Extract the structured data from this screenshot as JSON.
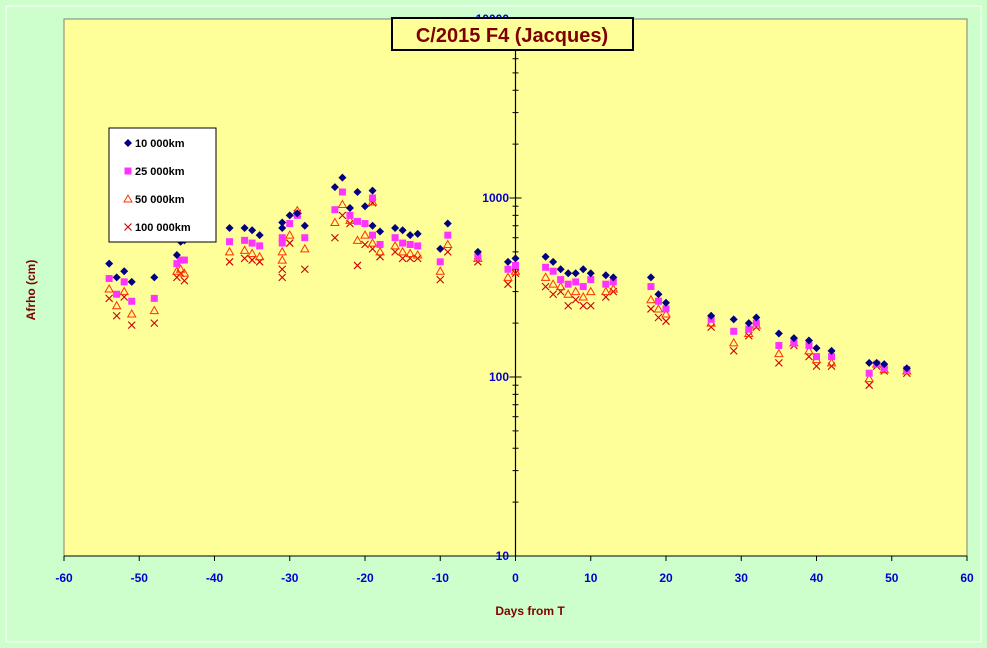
{
  "chart_data": {
    "type": "scatter",
    "title": "C/2015 F4 (Jacques)",
    "xlabel": "Days from  T",
    "ylabel": "Afrho (cm)",
    "xlim": [
      -60,
      60
    ],
    "ylim": [
      10,
      10000
    ],
    "yscale": "log",
    "grid": false,
    "legend_position": "left",
    "colors": {
      "plot_background": "#ffff99",
      "page_background": "#ccffcc",
      "axis_text": "#0000cc",
      "label_text": "#800000"
    },
    "x_ticks": [
      "-60",
      "-50",
      "-40",
      "-30",
      "-20",
      "-10",
      "0",
      "10",
      "20",
      "30",
      "40",
      "50",
      "60"
    ],
    "y_ticks": [
      "10",
      "100",
      "1000",
      "10000"
    ],
    "series": [
      {
        "name": "10 000km",
        "marker": "diamond",
        "color": "#000080",
        "points": [
          [
            -54,
            430
          ],
          [
            -53,
            360
          ],
          [
            -52,
            390
          ],
          [
            -51,
            340
          ],
          [
            -48,
            360
          ],
          [
            -45,
            480
          ],
          [
            -44.5,
            570
          ],
          [
            -44,
            580
          ],
          [
            -38,
            680
          ],
          [
            -36,
            680
          ],
          [
            -35,
            660
          ],
          [
            -34,
            620
          ],
          [
            -31,
            730
          ],
          [
            -31,
            680
          ],
          [
            -30,
            800
          ],
          [
            -29,
            820
          ],
          [
            -28,
            700
          ],
          [
            -24,
            1150
          ],
          [
            -23,
            1300
          ],
          [
            -22,
            880
          ],
          [
            -21,
            1080
          ],
          [
            -20,
            900
          ],
          [
            -19,
            1100
          ],
          [
            -19,
            700
          ],
          [
            -18,
            650
          ],
          [
            -16,
            680
          ],
          [
            -15,
            660
          ],
          [
            -14,
            620
          ],
          [
            -13,
            630
          ],
          [
            -10,
            520
          ],
          [
            -9,
            720
          ],
          [
            -5,
            500
          ],
          [
            -1,
            440
          ],
          [
            0,
            460
          ],
          [
            4,
            470
          ],
          [
            5,
            440
          ],
          [
            6,
            400
          ],
          [
            7,
            380
          ],
          [
            8,
            380
          ],
          [
            9,
            400
          ],
          [
            10,
            380
          ],
          [
            12,
            370
          ],
          [
            13,
            360
          ],
          [
            18,
            360
          ],
          [
            19,
            290
          ],
          [
            20,
            260
          ],
          [
            26,
            220
          ],
          [
            29,
            210
          ],
          [
            31,
            200
          ],
          [
            32,
            215
          ],
          [
            35,
            175
          ],
          [
            37,
            165
          ],
          [
            39,
            160
          ],
          [
            40,
            145
          ],
          [
            42,
            140
          ],
          [
            47,
            120
          ],
          [
            48,
            120
          ],
          [
            49,
            118
          ],
          [
            52,
            112
          ]
        ]
      },
      {
        "name": "25 000km",
        "marker": "square",
        "color": "#ff33ff",
        "points": [
          [
            -54,
            355
          ],
          [
            -53,
            290
          ],
          [
            -52,
            340
          ],
          [
            -51,
            265
          ],
          [
            -48,
            275
          ],
          [
            -45,
            430
          ],
          [
            -44.5,
            450
          ],
          [
            -44,
            450
          ],
          [
            -38,
            570
          ],
          [
            -36,
            580
          ],
          [
            -35,
            560
          ],
          [
            -34,
            540
          ],
          [
            -31,
            560
          ],
          [
            -31,
            600
          ],
          [
            -30,
            720
          ],
          [
            -29,
            800
          ],
          [
            -28,
            600
          ],
          [
            -24,
            860
          ],
          [
            -23,
            1080
          ],
          [
            -22,
            800
          ],
          [
            -21,
            740
          ],
          [
            -20,
            720
          ],
          [
            -19,
            620
          ],
          [
            -19,
            1000
          ],
          [
            -18,
            550
          ],
          [
            -16,
            600
          ],
          [
            -15,
            560
          ],
          [
            -14,
            550
          ],
          [
            -13,
            540
          ],
          [
            -10,
            440
          ],
          [
            -9,
            620
          ],
          [
            -5,
            470
          ],
          [
            -1,
            400
          ],
          [
            0,
            420
          ],
          [
            4,
            410
          ],
          [
            5,
            390
          ],
          [
            6,
            350
          ],
          [
            7,
            330
          ],
          [
            8,
            340
          ],
          [
            9,
            320
          ],
          [
            10,
            350
          ],
          [
            12,
            330
          ],
          [
            13,
            340
          ],
          [
            18,
            320
          ],
          [
            19,
            265
          ],
          [
            20,
            240
          ],
          [
            26,
            210
          ],
          [
            29,
            180
          ],
          [
            31,
            185
          ],
          [
            32,
            200
          ],
          [
            35,
            150
          ],
          [
            37,
            155
          ],
          [
            39,
            150
          ],
          [
            40,
            130
          ],
          [
            42,
            130
          ],
          [
            47,
            105
          ],
          [
            48,
            118
          ],
          [
            49,
            112
          ],
          [
            52,
            110
          ]
        ]
      },
      {
        "name": "50 000km",
        "marker": "triangle",
        "color": "#ff3300",
        "points": [
          [
            -54,
            310
          ],
          [
            -53,
            250
          ],
          [
            -52,
            300
          ],
          [
            -51,
            225
          ],
          [
            -48,
            235
          ],
          [
            -45,
            390
          ],
          [
            -44.5,
            400
          ],
          [
            -44,
            380
          ],
          [
            -38,
            500
          ],
          [
            -36,
            510
          ],
          [
            -35,
            490
          ],
          [
            -34,
            470
          ],
          [
            -31,
            450
          ],
          [
            -31,
            500
          ],
          [
            -30,
            620
          ],
          [
            -29,
            850
          ],
          [
            -28,
            520
          ],
          [
            -24,
            730
          ],
          [
            -23,
            920
          ],
          [
            -22,
            750
          ],
          [
            -21,
            580
          ],
          [
            -20,
            620
          ],
          [
            -19,
            560
          ],
          [
            -19,
            950
          ],
          [
            -18,
            500
          ],
          [
            -16,
            540
          ],
          [
            -15,
            500
          ],
          [
            -14,
            490
          ],
          [
            -13,
            480
          ],
          [
            -10,
            390
          ],
          [
            -9,
            550
          ],
          [
            -5,
            460
          ],
          [
            -1,
            360
          ],
          [
            0,
            390
          ],
          [
            4,
            360
          ],
          [
            5,
            330
          ],
          [
            6,
            320
          ],
          [
            7,
            290
          ],
          [
            8,
            300
          ],
          [
            9,
            280
          ],
          [
            10,
            300
          ],
          [
            12,
            300
          ],
          [
            13,
            310
          ],
          [
            18,
            270
          ],
          [
            19,
            240
          ],
          [
            20,
            225
          ],
          [
            26,
            200
          ],
          [
            29,
            155
          ],
          [
            31,
            175
          ],
          [
            32,
            195
          ],
          [
            35,
            135
          ],
          [
            37,
            155
          ],
          [
            39,
            140
          ],
          [
            40,
            125
          ],
          [
            42,
            120
          ],
          [
            47,
            98
          ],
          [
            48,
            118
          ],
          [
            49,
            110
          ],
          [
            52,
            108
          ]
        ]
      },
      {
        "name": "100 000km",
        "marker": "cross",
        "color": "#cc0000",
        "points": [
          [
            -54,
            275
          ],
          [
            -53,
            220
          ],
          [
            -52,
            280
          ],
          [
            -51,
            195
          ],
          [
            -48,
            200
          ],
          [
            -45,
            360
          ],
          [
            -44.5,
            380
          ],
          [
            -44,
            345
          ],
          [
            -38,
            440
          ],
          [
            -36,
            460
          ],
          [
            -35,
            450
          ],
          [
            -34,
            440
          ],
          [
            -31,
            360
          ],
          [
            -31,
            400
          ],
          [
            -30,
            560
          ],
          [
            -29,
            820
          ],
          [
            -28,
            400
          ],
          [
            -24,
            600
          ],
          [
            -23,
            800
          ],
          [
            -22,
            720
          ],
          [
            -21,
            420
          ],
          [
            -20,
            550
          ],
          [
            -19,
            520
          ],
          [
            -19,
            940
          ],
          [
            -18,
            470
          ],
          [
            -16,
            500
          ],
          [
            -15,
            460
          ],
          [
            -14,
            460
          ],
          [
            -13,
            460
          ],
          [
            -10,
            350
          ],
          [
            -9,
            500
          ],
          [
            -5,
            440
          ],
          [
            -1,
            330
          ],
          [
            0,
            380
          ],
          [
            4,
            320
          ],
          [
            5,
            290
          ],
          [
            6,
            300
          ],
          [
            7,
            250
          ],
          [
            8,
            270
          ],
          [
            9,
            250
          ],
          [
            10,
            250
          ],
          [
            12,
            280
          ],
          [
            13,
            300
          ],
          [
            18,
            240
          ],
          [
            19,
            215
          ],
          [
            20,
            205
          ],
          [
            26,
            190
          ],
          [
            29,
            140
          ],
          [
            31,
            170
          ],
          [
            32,
            190
          ],
          [
            35,
            120
          ],
          [
            37,
            150
          ],
          [
            39,
            130
          ],
          [
            40,
            115
          ],
          [
            42,
            115
          ],
          [
            47,
            90
          ],
          [
            48,
            115
          ],
          [
            49,
            108
          ],
          [
            52,
            105
          ]
        ]
      }
    ]
  }
}
